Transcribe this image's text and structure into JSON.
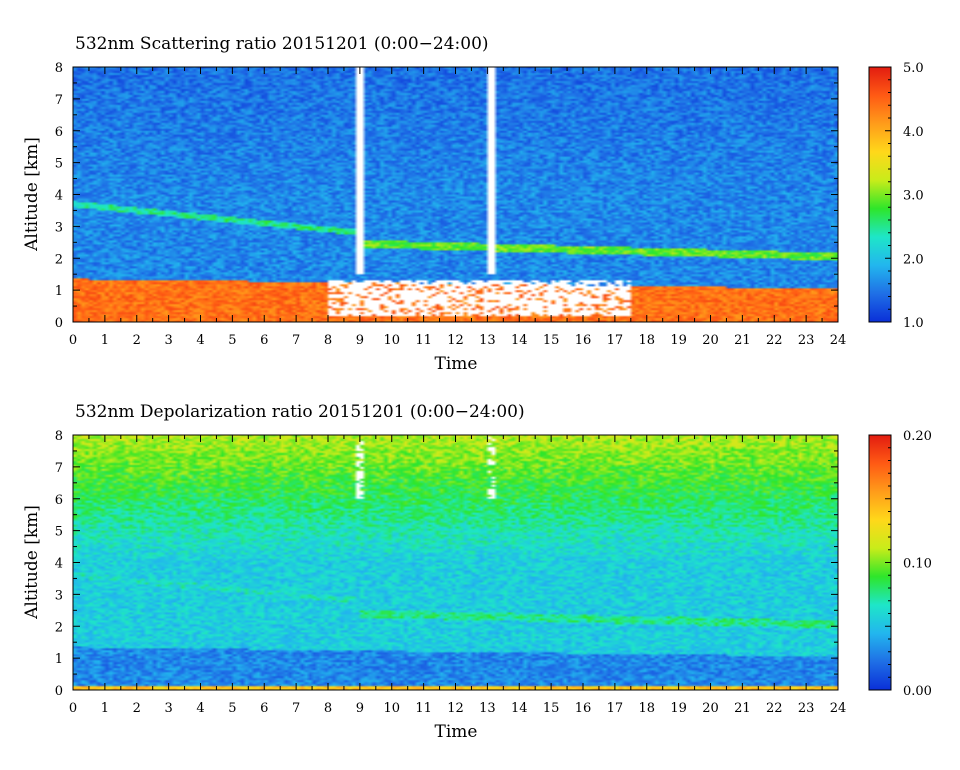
{
  "chart_data": [
    {
      "type": "heatmap",
      "title": "532nm Scattering ratio  20151201 (0:00−24:00)",
      "xlabel": "Time",
      "ylabel": "Altitude [km]",
      "xlim": [
        0,
        24
      ],
      "ylim": [
        0,
        8
      ],
      "x_ticks": [
        0,
        1,
        2,
        3,
        4,
        5,
        6,
        7,
        8,
        9,
        10,
        11,
        12,
        13,
        14,
        15,
        16,
        17,
        18,
        19,
        20,
        21,
        22,
        23,
        24
      ],
      "y_ticks": [
        0,
        1,
        2,
        3,
        4,
        5,
        6,
        7,
        8
      ],
      "colorbar": {
        "range": [
          1.0,
          5.0
        ],
        "ticks": [
          "1.0",
          "2.0",
          "3.0",
          "4.0",
          "5.0"
        ],
        "colors": [
          "#0a2fd8",
          "#1f6fe6",
          "#22b6ee",
          "#1ee6c8",
          "#2ee62a",
          "#c8ec1a",
          "#ffd81a",
          "#ff9c1a",
          "#ff5a14",
          "#e21c10"
        ]
      },
      "layers": {
        "background_value": 1.6,
        "upper_value": 1.45,
        "boundary_layer": {
          "top_km_start": 1.35,
          "top_km_end": 1.05,
          "value": 4.4
        },
        "thin_layer": {
          "km_at_0h": 3.7,
          "km_at_9h": 2.8,
          "value": 2.5
        },
        "mid_layer": {
          "km_at_9h": 2.45,
          "km_at_24h": 2.05,
          "value": 2.9
        },
        "cloud_columns_h": [
          8.95,
          13.1
        ],
        "low_cloud_span_h": [
          8.0,
          17.5
        ]
      }
    },
    {
      "type": "heatmap",
      "title": "532nm Depolarization ratio  20151201 (0:00−24:00)",
      "xlabel": "Time",
      "ylabel": "Altitude [km]",
      "xlim": [
        0,
        24
      ],
      "ylim": [
        0,
        8
      ],
      "x_ticks": [
        0,
        1,
        2,
        3,
        4,
        5,
        6,
        7,
        8,
        9,
        10,
        11,
        12,
        13,
        14,
        15,
        16,
        17,
        18,
        19,
        20,
        21,
        22,
        23,
        24
      ],
      "y_ticks": [
        0,
        1,
        2,
        3,
        4,
        5,
        6,
        7,
        8
      ],
      "colorbar": {
        "range": [
          0.0,
          0.2
        ],
        "ticks": [
          "0.00",
          "0.10",
          "0.20"
        ],
        "colors": [
          "#0a2fd8",
          "#1f6fe6",
          "#22b6ee",
          "#1ee6c8",
          "#2ee62a",
          "#c8ec1a",
          "#ffd81a",
          "#ff9c1a",
          "#ff5a14",
          "#e21c10"
        ]
      },
      "layers": {
        "background_value": 0.055,
        "upper_value": 0.11,
        "boundary_layer": {
          "top_km_start": 1.35,
          "top_km_end": 1.05,
          "value": 0.03
        },
        "thin_layer": {
          "km_at_0h": 3.6,
          "km_at_9h": 2.8,
          "value": 0.065
        },
        "mid_layer": {
          "km_at_9h": 2.4,
          "km_at_24h": 2.05,
          "value": 0.075
        },
        "surface_band_value": 0.14,
        "cloud_columns_h": [
          8.95,
          13.1
        ]
      }
    }
  ]
}
